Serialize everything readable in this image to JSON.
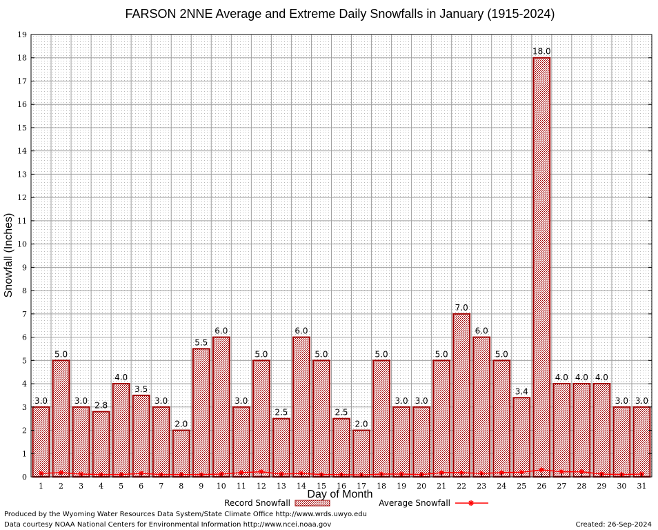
{
  "chart_data": {
    "type": "bar",
    "title": "FARSON 2NNE Average and Extreme Daily Snowfalls in January (1915-2024)",
    "xlabel": "Day of Month",
    "ylabel": "Snowfall (Inches)",
    "ylim": [
      0,
      19
    ],
    "yticks": [
      "0",
      "1",
      "2",
      "3",
      "4",
      "5",
      "6",
      "7",
      "8",
      "9",
      "10",
      "11",
      "12",
      "13",
      "14",
      "15",
      "16",
      "17",
      "18",
      "19"
    ],
    "categories": [
      "1",
      "2",
      "3",
      "4",
      "5",
      "6",
      "7",
      "8",
      "9",
      "10",
      "11",
      "12",
      "13",
      "14",
      "15",
      "16",
      "17",
      "18",
      "19",
      "20",
      "21",
      "22",
      "23",
      "24",
      "25",
      "26",
      "27",
      "28",
      "29",
      "30",
      "31"
    ],
    "grid": true,
    "legend_position": "bottom",
    "series": [
      {
        "name": "Record Snowfall",
        "type": "bar",
        "color": "#a00000",
        "values": [
          3.0,
          5.0,
          3.0,
          2.8,
          4.0,
          3.5,
          3.0,
          2.0,
          5.5,
          6.0,
          3.0,
          5.0,
          2.5,
          6.0,
          5.0,
          2.5,
          2.0,
          5.0,
          3.0,
          3.0,
          5.0,
          7.0,
          6.0,
          5.0,
          3.4,
          18.0,
          4.0,
          4.0,
          4.0,
          3.0,
          3.0
        ],
        "labels": [
          "3.0",
          "5.0",
          "3.0",
          "2.8",
          "4.0",
          "3.5",
          "3.0",
          "2.0",
          "5.5",
          "6.0",
          "3.0",
          "5.0",
          "2.5",
          "6.0",
          "5.0",
          "2.5",
          "2.0",
          "5.0",
          "3.0",
          "3.0",
          "5.0",
          "7.0",
          "6.0",
          "5.0",
          "3.4",
          "18.0",
          "4.0",
          "4.0",
          "4.0",
          "3.0",
          "3.0"
        ]
      },
      {
        "name": "Average Snowfall",
        "type": "line",
        "color": "#ff0000",
        "values": [
          0.15,
          0.18,
          0.12,
          0.1,
          0.1,
          0.15,
          0.1,
          0.1,
          0.1,
          0.12,
          0.18,
          0.22,
          0.12,
          0.15,
          0.1,
          0.1,
          0.08,
          0.12,
          0.12,
          0.1,
          0.18,
          0.18,
          0.15,
          0.18,
          0.2,
          0.3,
          0.22,
          0.22,
          0.12,
          0.1,
          0.12
        ]
      }
    ]
  },
  "footer": {
    "left_line1": "Produced by the Wyoming Water Resources Data System/State Climate Office http://www.wrds.uwyo.edu",
    "left_line2": "Data courtesy NOAA National Centers for Environmental Information http://www.ncei.noaa.gov",
    "created": "Created:  26-Sep-2024"
  }
}
